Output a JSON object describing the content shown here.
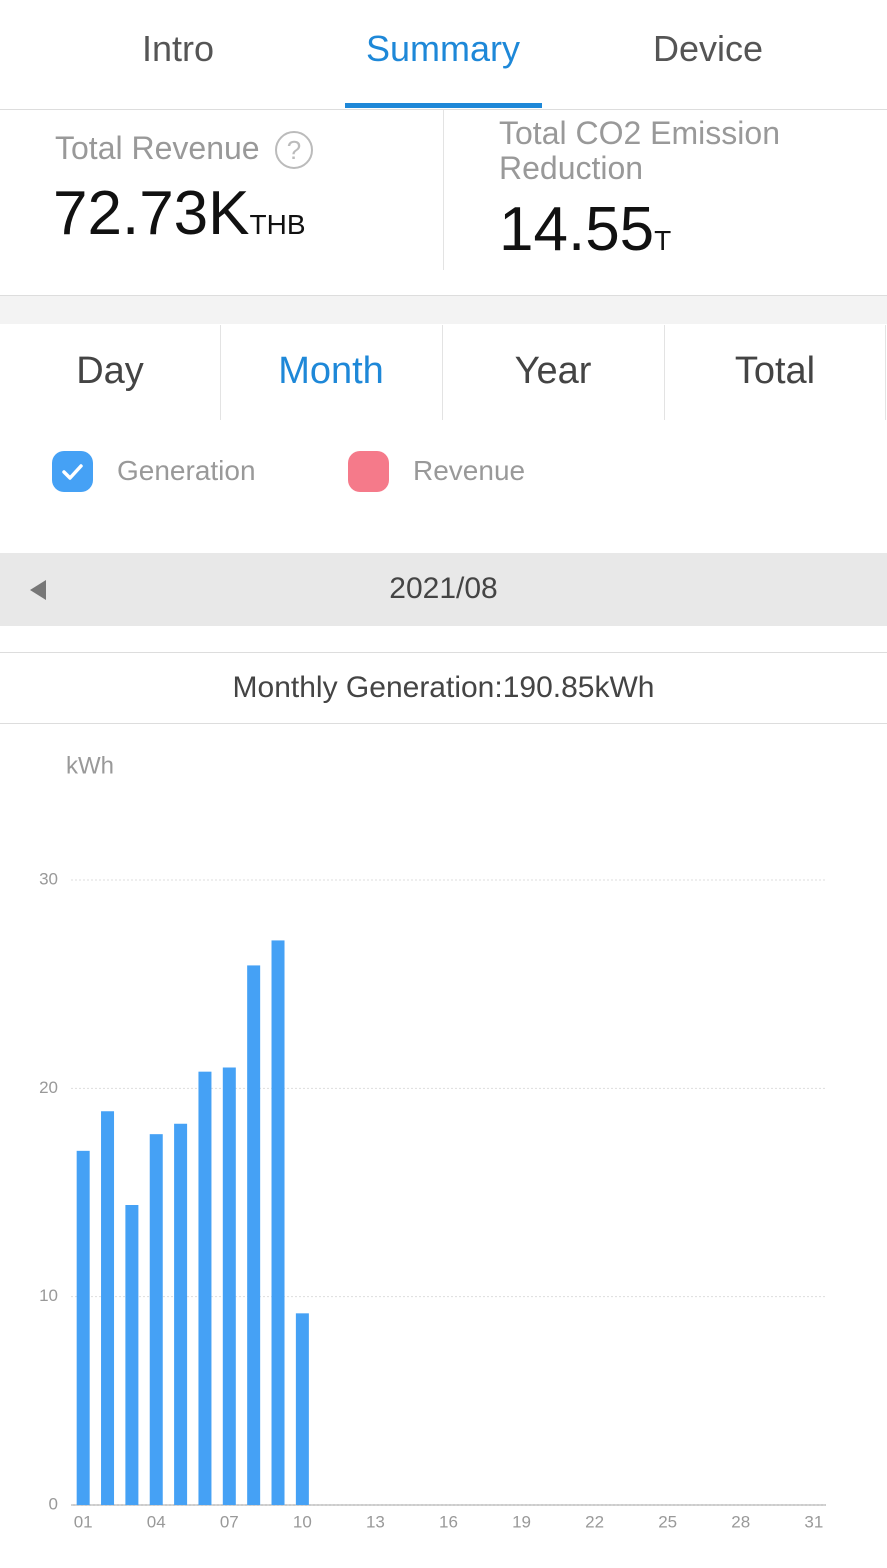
{
  "tabs": [
    "Intro",
    "Summary",
    "Device"
  ],
  "revenue": {
    "label": "Total Revenue",
    "value": "72.73K",
    "unit": "THB"
  },
  "co2": {
    "label": "Total CO2 Emission Reduction",
    "value": "14.55",
    "unit": "T"
  },
  "periods": [
    "Day",
    "Month",
    "Year",
    "Total"
  ],
  "legend": [
    "Generation",
    "Revenue"
  ],
  "date": "2021/08",
  "monthly": "Monthly Generation:190.85kWh",
  "chart_data": {
    "type": "bar",
    "ylabel": "kWh",
    "categories": [
      "01",
      null,
      null,
      "04",
      null,
      null,
      "07",
      null,
      null,
      "10",
      null,
      null,
      "13",
      null,
      null,
      "16",
      null,
      null,
      "19",
      null,
      null,
      "22",
      null,
      null,
      "25",
      null,
      null,
      "28",
      null,
      null,
      "31"
    ],
    "values": [
      17.0,
      18.9,
      14.4,
      17.8,
      18.3,
      20.8,
      21.0,
      25.9,
      27.1,
      9.2,
      null,
      null,
      null,
      null,
      null,
      null,
      null,
      null,
      null,
      null,
      null,
      null,
      null,
      null,
      null,
      null,
      null,
      null,
      null,
      null,
      null
    ],
    "color": "#45a1f5",
    "ylim": [
      0,
      30
    ],
    "yticks": [
      0,
      10,
      20,
      30
    ],
    "grid": true
  }
}
